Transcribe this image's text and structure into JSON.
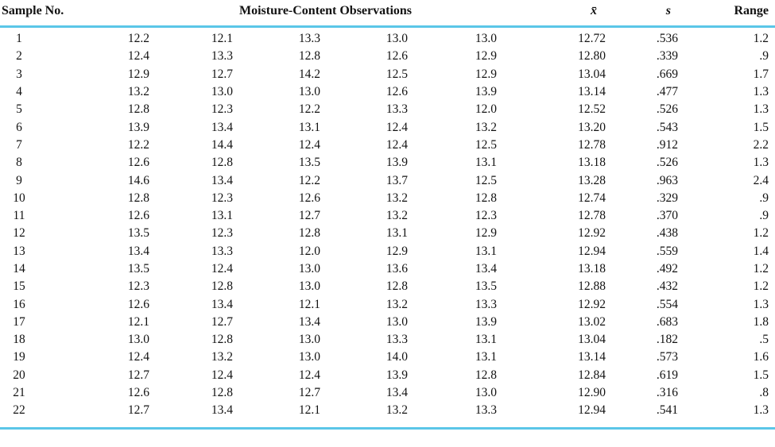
{
  "table": {
    "headers": {
      "sample_no": "Sample No.",
      "observations": "Moisture-Content Observations",
      "mean": "x̄",
      "std_dev": "s",
      "range": "Range"
    },
    "rule_color": "#5bc6e8",
    "rows": [
      {
        "sample": "1",
        "obs": [
          "12.2",
          "12.1",
          "13.3",
          "13.0",
          "13.0"
        ],
        "mean": "12.72",
        "s": ".536",
        "range": "1.2"
      },
      {
        "sample": "2",
        "obs": [
          "12.4",
          "13.3",
          "12.8",
          "12.6",
          "12.9"
        ],
        "mean": "12.80",
        "s": ".339",
        "range": ".9"
      },
      {
        "sample": "3",
        "obs": [
          "12.9",
          "12.7",
          "14.2",
          "12.5",
          "12.9"
        ],
        "mean": "13.04",
        "s": ".669",
        "range": "1.7"
      },
      {
        "sample": "4",
        "obs": [
          "13.2",
          "13.0",
          "13.0",
          "12.6",
          "13.9"
        ],
        "mean": "13.14",
        "s": ".477",
        "range": "1.3"
      },
      {
        "sample": "5",
        "obs": [
          "12.8",
          "12.3",
          "12.2",
          "13.3",
          "12.0"
        ],
        "mean": "12.52",
        "s": ".526",
        "range": "1.3"
      },
      {
        "sample": "6",
        "obs": [
          "13.9",
          "13.4",
          "13.1",
          "12.4",
          "13.2"
        ],
        "mean": "13.20",
        "s": ".543",
        "range": "1.5"
      },
      {
        "sample": "7",
        "obs": [
          "12.2",
          "14.4",
          "12.4",
          "12.4",
          "12.5"
        ],
        "mean": "12.78",
        "s": ".912",
        "range": "2.2"
      },
      {
        "sample": "8",
        "obs": [
          "12.6",
          "12.8",
          "13.5",
          "13.9",
          "13.1"
        ],
        "mean": "13.18",
        "s": ".526",
        "range": "1.3"
      },
      {
        "sample": "9",
        "obs": [
          "14.6",
          "13.4",
          "12.2",
          "13.7",
          "12.5"
        ],
        "mean": "13.28",
        "s": ".963",
        "range": "2.4"
      },
      {
        "sample": "10",
        "obs": [
          "12.8",
          "12.3",
          "12.6",
          "13.2",
          "12.8"
        ],
        "mean": "12.74",
        "s": ".329",
        "range": ".9"
      },
      {
        "sample": "11",
        "obs": [
          "12.6",
          "13.1",
          "12.7",
          "13.2",
          "12.3"
        ],
        "mean": "12.78",
        "s": ".370",
        "range": ".9"
      },
      {
        "sample": "12",
        "obs": [
          "13.5",
          "12.3",
          "12.8",
          "13.1",
          "12.9"
        ],
        "mean": "12.92",
        "s": ".438",
        "range": "1.2"
      },
      {
        "sample": "13",
        "obs": [
          "13.4",
          "13.3",
          "12.0",
          "12.9",
          "13.1"
        ],
        "mean": "12.94",
        "s": ".559",
        "range": "1.4"
      },
      {
        "sample": "14",
        "obs": [
          "13.5",
          "12.4",
          "13.0",
          "13.6",
          "13.4"
        ],
        "mean": "13.18",
        "s": ".492",
        "range": "1.2"
      },
      {
        "sample": "15",
        "obs": [
          "12.3",
          "12.8",
          "13.0",
          "12.8",
          "13.5"
        ],
        "mean": "12.88",
        "s": ".432",
        "range": "1.2"
      },
      {
        "sample": "16",
        "obs": [
          "12.6",
          "13.4",
          "12.1",
          "13.2",
          "13.3"
        ],
        "mean": "12.92",
        "s": ".554",
        "range": "1.3"
      },
      {
        "sample": "17",
        "obs": [
          "12.1",
          "12.7",
          "13.4",
          "13.0",
          "13.9"
        ],
        "mean": "13.02",
        "s": ".683",
        "range": "1.8"
      },
      {
        "sample": "18",
        "obs": [
          "13.0",
          "12.8",
          "13.0",
          "13.3",
          "13.1"
        ],
        "mean": "13.04",
        "s": ".182",
        "range": ".5"
      },
      {
        "sample": "19",
        "obs": [
          "12.4",
          "13.2",
          "13.0",
          "14.0",
          "13.1"
        ],
        "mean": "13.14",
        "s": ".573",
        "range": "1.6"
      },
      {
        "sample": "20",
        "obs": [
          "12.7",
          "12.4",
          "12.4",
          "13.9",
          "12.8"
        ],
        "mean": "12.84",
        "s": ".619",
        "range": "1.5"
      },
      {
        "sample": "21",
        "obs": [
          "12.6",
          "12.8",
          "12.7",
          "13.4",
          "13.0"
        ],
        "mean": "12.90",
        "s": ".316",
        "range": ".8"
      },
      {
        "sample": "22",
        "obs": [
          "12.7",
          "13.4",
          "12.1",
          "13.2",
          "13.3"
        ],
        "mean": "12.94",
        "s": ".541",
        "range": "1.3"
      }
    ]
  }
}
